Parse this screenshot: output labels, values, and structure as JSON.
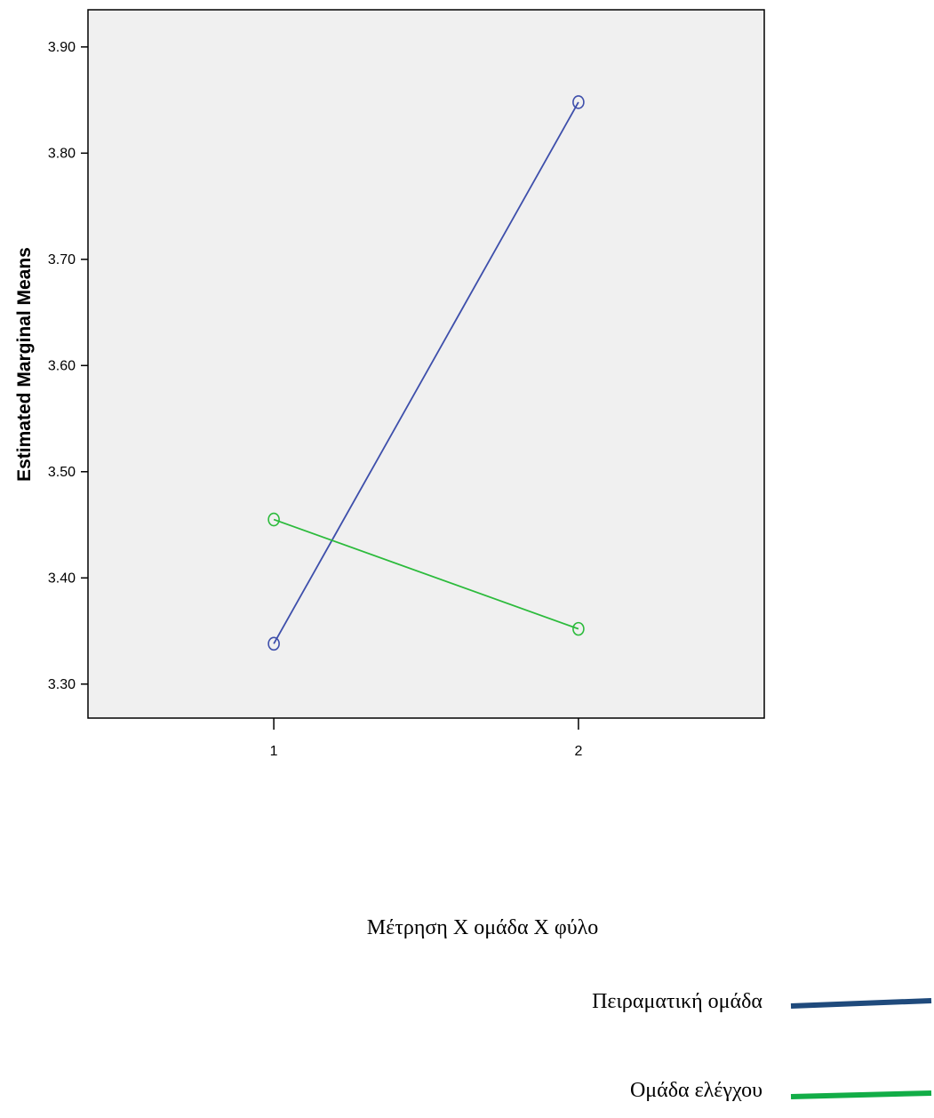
{
  "chart_data": {
    "type": "line",
    "title": "",
    "xlabel": "",
    "ylabel": "Estimated Marginal Means",
    "caption": "Μέτρηση Χ ομάδα Χ φύλο",
    "categories": [
      "1",
      "2"
    ],
    "x": [
      1,
      2
    ],
    "xlim": [
      0.39,
      2.61
    ],
    "ylim": [
      3.268,
      3.935
    ],
    "yticks": [
      3.3,
      3.4,
      3.5,
      3.6,
      3.7,
      3.8,
      3.9
    ],
    "ytick_labels": [
      "3.30",
      "3.40",
      "3.50",
      "3.60",
      "3.70",
      "3.80",
      "3.90"
    ],
    "grid": false,
    "legend_position": "bottom-right",
    "plot_background": "#f0f0f0",
    "series": [
      {
        "name": "Πειραματική ομάδα",
        "values": [
          3.338,
          3.848
        ],
        "color": "#3e4fab",
        "legend_color": "#1f4a7c"
      },
      {
        "name": "Ομάδα ελέγχου",
        "values": [
          3.455,
          3.352
        ],
        "color": "#2cbb3c",
        "legend_color": "#12ad47"
      }
    ]
  }
}
